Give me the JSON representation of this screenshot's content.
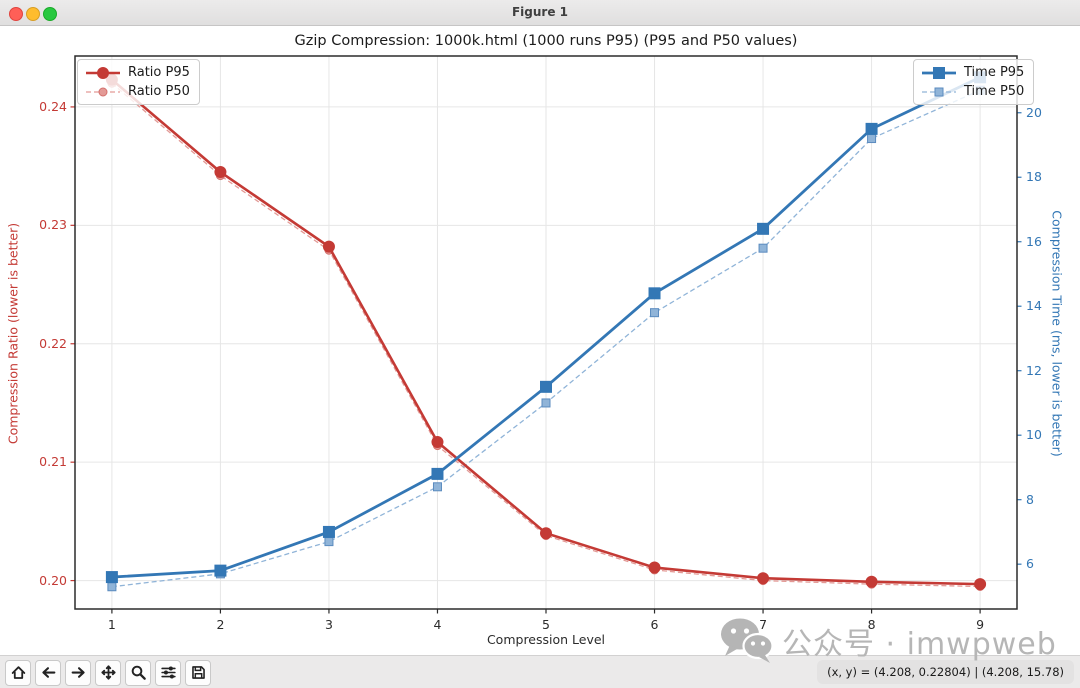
{
  "window": {
    "title": "Figure 1"
  },
  "chart_data": {
    "type": "line",
    "title": "Gzip Compression: 1000k.html (1000 runs P95) (P95 and P50 values)",
    "xlabel": "Compression Level",
    "ylabel_left": "Compression Ratio (lower is better)",
    "ylabel_right": "Compression Time (ms, lower is better)",
    "x": [
      1,
      2,
      3,
      4,
      5,
      6,
      7,
      8,
      9
    ],
    "x_tick_labels": [
      "1",
      "2",
      "3",
      "4",
      "5",
      "6",
      "7",
      "8",
      "9"
    ],
    "y_left_tick_labels": [
      "0.24",
      "0.23",
      "0.22",
      "0.21",
      "0.20"
    ],
    "y_left_tick_values": [
      0.24,
      0.23,
      0.22,
      0.21,
      0.2
    ],
    "y_right_tick_labels": [
      "20",
      "18",
      "16",
      "14",
      "12",
      "10",
      "8",
      "6"
    ],
    "y_right_tick_values": [
      20,
      18,
      16,
      14,
      12,
      10,
      8,
      6
    ],
    "xlim": [
      0.66,
      9.34
    ],
    "ylim_left": [
      0.1976,
      0.2443
    ],
    "ylim_right": [
      4.61,
      21.76
    ],
    "grid": true,
    "legend_left_items": [
      "Ratio P95",
      "Ratio P50"
    ],
    "legend_right_items": [
      "Time P95",
      "Time P50"
    ],
    "series": [
      {
        "name": "Ratio P95",
        "axis": "left",
        "color": "#c43a35",
        "edge": "#c43a35",
        "line": "solid",
        "marker": "circle",
        "marker_size": 11,
        "width": 2.6,
        "values": [
          0.2423,
          0.2345,
          0.2282,
          0.2117,
          0.204,
          0.2011,
          0.2002,
          0.1999,
          0.1997
        ]
      },
      {
        "name": "Ratio P50",
        "axis": "left",
        "color": "#e39a96",
        "edge": "#d4706c",
        "line": "dashed",
        "marker": "circle",
        "marker_size": 8,
        "width": 1.3,
        "values": [
          0.242,
          0.2342,
          0.2279,
          0.2114,
          0.2038,
          0.2009,
          0.2,
          0.1997,
          0.1995
        ]
      },
      {
        "name": "Time P95",
        "axis": "right",
        "color": "#3377b5",
        "edge": "#3377b5",
        "line": "solid",
        "marker": "square",
        "marker_size": 11,
        "width": 2.8,
        "values": [
          5.6,
          5.8,
          7.0,
          8.8,
          11.5,
          14.4,
          16.4,
          19.5,
          21.1
        ]
      },
      {
        "name": "Time P50",
        "axis": "right",
        "color": "#90b4d8",
        "edge": "#5b8bbf",
        "line": "dashed",
        "marker": "square",
        "marker_size": 8,
        "width": 1.3,
        "values": [
          5.3,
          5.7,
          6.7,
          8.4,
          11.0,
          13.8,
          15.8,
          19.2,
          20.7
        ]
      }
    ]
  },
  "toolbar": {
    "buttons": [
      {
        "name": "home"
      },
      {
        "name": "back"
      },
      {
        "name": "forward"
      },
      {
        "name": "pan"
      },
      {
        "name": "zoom-to-rect"
      },
      {
        "name": "configure-subplots"
      },
      {
        "name": "save"
      }
    ]
  },
  "status_bar": {
    "text": "(x, y) = (4.208, 0.22804) | (4.208, 15.78)"
  },
  "watermark": {
    "icon": "wechat-icon",
    "text": "公众号 · imwpweb"
  },
  "colors": {
    "ratio_axis": "#c43a35",
    "time_axis": "#3377b5",
    "traffic_red": "#ff5f57",
    "traffic_yellow": "#febc2e",
    "traffic_green": "#28c840"
  }
}
